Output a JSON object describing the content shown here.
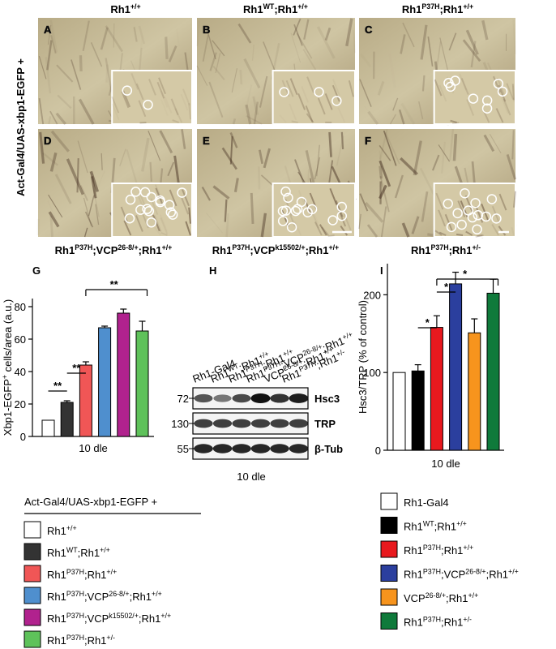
{
  "micrographs": {
    "row_label": "Act-Gal4/UAS-xbp1-EGFP +",
    "column_headers": [
      [
        "Rh1",
        "+/+"
      ],
      [
        "Rh1",
        "WT",
        ";Rh1",
        "+/+"
      ],
      [
        "Rh1",
        "P37H",
        ";Rh1",
        "+/+"
      ]
    ],
    "panel_letters": [
      "A",
      "B",
      "C",
      "D",
      "E",
      "F"
    ],
    "row2_labels": [
      [
        "Rh1",
        "P37H",
        ";VCP",
        "26-8/+",
        ";Rh1",
        "+/+"
      ],
      [
        "Rh1",
        "P37H",
        ";VCP",
        "k15502/+",
        ";Rh1",
        "+/+"
      ],
      [
        "Rh1",
        "P37H",
        ";Rh1",
        "+/-"
      ]
    ]
  },
  "blot": {
    "panel": "H",
    "lanes": [
      [
        "Rh1-Gal4"
      ],
      [
        "Rh1",
        "WT",
        ";Rh1",
        "+/+"
      ],
      [
        "Rh1",
        "P37H",
        ";Rh1",
        "+/+"
      ],
      [
        "Rh1",
        "P37H",
        ";VCP",
        "26-8/+",
        ";Rh1",
        "+/+"
      ],
      [
        "VCP",
        "26-8/+",
        ";Rh1",
        "+/+"
      ],
      [
        "Rh1",
        "P37H",
        ";Rh1",
        "+/-"
      ]
    ],
    "markers": [
      72,
      130,
      55
    ],
    "proteins": [
      "Hsc3",
      "TRP",
      "β-Tub"
    ],
    "xlabel": "10 dle"
  },
  "chart_data": [
    {
      "type": "bar",
      "panel": "G",
      "ylabel": [
        "Xbp1-EGFP",
        "+",
        " cells/area (a.u.)"
      ],
      "xlabel": "10 dle",
      "legend_title": "Act-Gal4/UAS-xbp1-EGFP +",
      "categories": [
        [
          "Rh1",
          "+/+"
        ],
        [
          "Rh1",
          "WT",
          ";Rh1",
          "+/+"
        ],
        [
          "Rh1",
          "P37H",
          ";Rh1",
          "+/+"
        ],
        [
          "Rh1",
          "P37H",
          ";VCP",
          "26-8/+",
          ";Rh1",
          "+/+"
        ],
        [
          "Rh1",
          "P37H",
          ";VCP",
          "k15502/+",
          ";Rh1",
          "+/+"
        ],
        [
          "Rh1",
          "P37H",
          ";Rh1",
          "+/-"
        ]
      ],
      "colors": [
        "#ffffff",
        "#333333",
        "#f05656",
        "#4f8fce",
        "#b1228e",
        "#5ec25a"
      ],
      "values": [
        10,
        21,
        44,
        67,
        76,
        65
      ],
      "errors": [
        0,
        1,
        2,
        1,
        2.5,
        6
      ],
      "ylim": [
        0,
        85
      ],
      "yticks": [
        0,
        20,
        40,
        60,
        80
      ],
      "annotations": [
        "**",
        "**",
        "**"
      ]
    },
    {
      "type": "bar",
      "panel": "I",
      "ylabel": [
        "Hsc3/TRP (% of control)"
      ],
      "xlabel": "10 dle",
      "categories": [
        [
          "Rh1-Gal4"
        ],
        [
          "Rh1",
          "WT",
          ";Rh1",
          "+/+"
        ],
        [
          "Rh1",
          "P37H",
          ";Rh1",
          "+/+"
        ],
        [
          "Rh1",
          "P37H",
          ";VCP",
          "26-8/+",
          ";Rh1",
          "+/+"
        ],
        [
          "VCP",
          "26-8/+",
          ";Rh1",
          "+/+"
        ],
        [
          "Rh1",
          "P37H",
          ";Rh1",
          "+/-"
        ]
      ],
      "colors": [
        "#ffffff",
        "#000000",
        "#e8191e",
        "#2b3f9e",
        "#f7941d",
        "#0f7a3b"
      ],
      "values": [
        100,
        102,
        158,
        214,
        151,
        202
      ],
      "errors": [
        0,
        8,
        15,
        15,
        18,
        18
      ],
      "ylim": [
        0,
        240
      ],
      "yticks": [
        0,
        100,
        200
      ],
      "annotations": [
        "*",
        "*",
        "*"
      ]
    }
  ]
}
